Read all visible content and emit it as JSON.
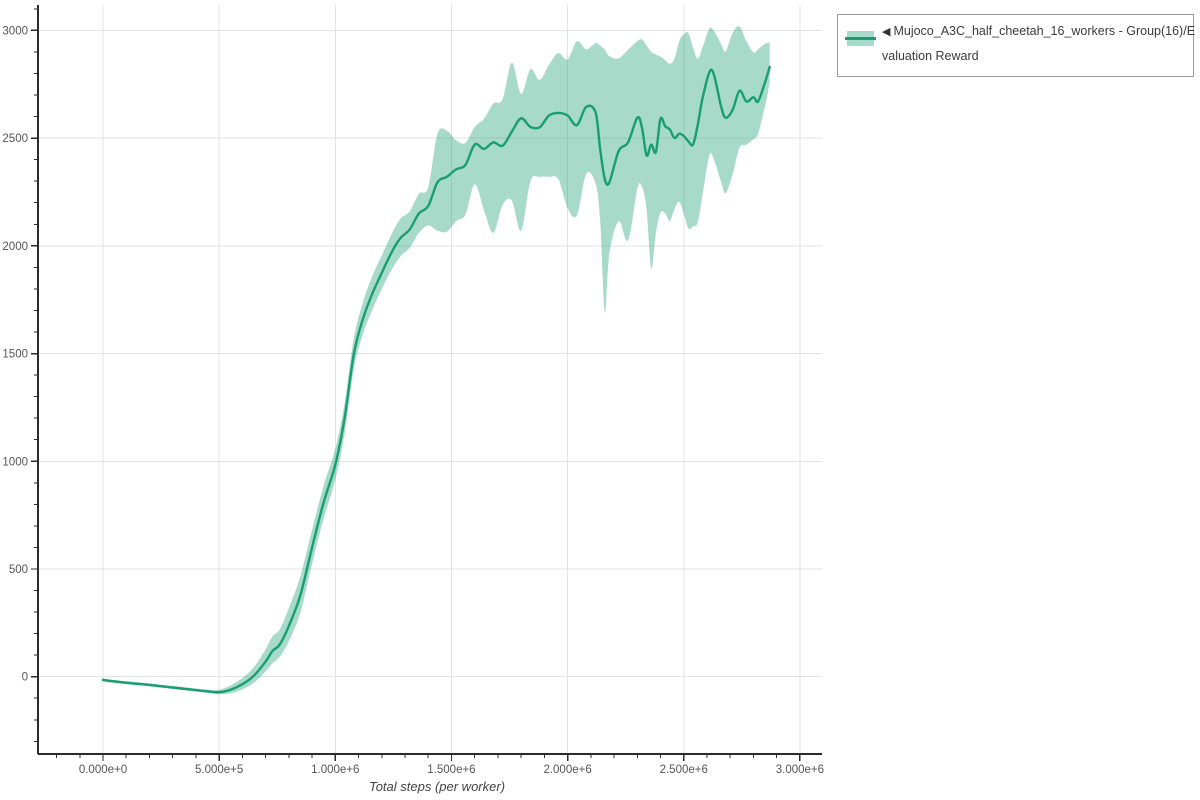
{
  "chart_data": {
    "type": "line",
    "title": "",
    "xlabel": "Total steps (per worker)",
    "ylabel": "",
    "grid": true,
    "legend_position": "outside-top-right",
    "xlim_steps": [
      -280000,
      3095000
    ],
    "ylim": [
      -360,
      3120
    ],
    "x_ticks": {
      "values_millions": [
        0,
        0.5,
        1,
        1.5,
        2,
        2.5,
        3
      ],
      "labels": [
        "0.000e+0",
        "5.000e+5",
        "1.000e+6",
        "1.500e+6",
        "2.000e+6",
        "2.500e+6",
        "3.000e+6"
      ],
      "minor_step_millions": 0.1,
      "minor_from_millions": -0.2,
      "minor_to_millions": 3.0
    },
    "y_ticks": {
      "values": [
        0,
        500,
        1000,
        1500,
        2000,
        2500,
        3000
      ],
      "labels": [
        "0",
        "500",
        "1000",
        "1500",
        "2000",
        "2500",
        "3000"
      ],
      "minor_step": 100,
      "minor_from": -300,
      "minor_to": 3100
    },
    "series": [
      {
        "name": "Mujoco_A3C_half_cheetah_16_workers - Group(16)/Evaluation Reward",
        "color": "#189e72",
        "band_fill_opacity": 0.38,
        "points_format": [
          "step_millions",
          "band_low",
          "mean",
          "band_high"
        ],
        "points": [
          [
            0.0,
            -22,
            -15,
            -8
          ],
          [
            0.05,
            -29,
            -22,
            -15
          ],
          [
            0.1,
            -35,
            -28,
            -21
          ],
          [
            0.15,
            -40,
            -33,
            -26
          ],
          [
            0.2,
            -45,
            -38,
            -31
          ],
          [
            0.25,
            -51,
            -44,
            -37
          ],
          [
            0.3,
            -57,
            -50,
            -43
          ],
          [
            0.35,
            -63,
            -56,
            -49
          ],
          [
            0.4,
            -69,
            -62,
            -55
          ],
          [
            0.45,
            -75,
            -68,
            -60
          ],
          [
            0.5,
            -81,
            -72,
            -61
          ],
          [
            0.55,
            -77,
            -60,
            -40
          ],
          [
            0.6,
            -58,
            -35,
            -6
          ],
          [
            0.65,
            -28,
            5,
            45
          ],
          [
            0.7,
            25,
            70,
            128
          ],
          [
            0.73,
            62,
            120,
            188
          ],
          [
            0.76,
            92,
            148,
            218
          ],
          [
            0.8,
            165,
            235,
            318
          ],
          [
            0.85,
            300,
            380,
            468
          ],
          [
            0.9,
            525,
            600,
            682
          ],
          [
            0.95,
            735,
            810,
            888
          ],
          [
            1.0,
            915,
            985,
            1058
          ],
          [
            1.04,
            1130,
            1200,
            1272
          ],
          [
            1.08,
            1430,
            1500,
            1572
          ],
          [
            1.12,
            1595,
            1665,
            1742
          ],
          [
            1.16,
            1705,
            1780,
            1862
          ],
          [
            1.2,
            1800,
            1875,
            1955
          ],
          [
            1.24,
            1885,
            1965,
            2050
          ],
          [
            1.28,
            1950,
            2035,
            2125
          ],
          [
            1.32,
            1990,
            2075,
            2160
          ],
          [
            1.36,
            2060,
            2150,
            2242
          ],
          [
            1.4,
            2095,
            2185,
            2272
          ],
          [
            1.44,
            2070,
            2295,
            2520
          ],
          [
            1.48,
            2065,
            2320,
            2535
          ],
          [
            1.52,
            2115,
            2355,
            2490
          ],
          [
            1.56,
            2145,
            2375,
            2478
          ],
          [
            1.6,
            2285,
            2470,
            2552
          ],
          [
            1.64,
            2165,
            2450,
            2590
          ],
          [
            1.68,
            2060,
            2480,
            2660
          ],
          [
            1.72,
            2190,
            2465,
            2680
          ],
          [
            1.76,
            2210,
            2530,
            2850
          ],
          [
            1.8,
            2070,
            2592,
            2705
          ],
          [
            1.84,
            2300,
            2552,
            2820
          ],
          [
            1.88,
            2320,
            2550,
            2770
          ],
          [
            1.92,
            2320,
            2605,
            2840
          ],
          [
            1.96,
            2310,
            2617,
            2895
          ],
          [
            2.0,
            2175,
            2605,
            2865
          ],
          [
            2.04,
            2142,
            2560,
            2950
          ],
          [
            2.08,
            2335,
            2645,
            2912
          ],
          [
            2.12,
            2290,
            2620,
            2940
          ],
          [
            2.14,
            2120,
            2450,
            2930
          ],
          [
            2.16,
            1690,
            2310,
            2910
          ],
          [
            2.18,
            1965,
            2295,
            2880
          ],
          [
            2.22,
            2115,
            2440,
            2870
          ],
          [
            2.26,
            2025,
            2480,
            2910
          ],
          [
            2.3,
            2265,
            2595,
            2950
          ],
          [
            2.32,
            2275,
            2550,
            2958
          ],
          [
            2.34,
            2170,
            2420,
            2930
          ],
          [
            2.36,
            1895,
            2470,
            2900
          ],
          [
            2.38,
            2060,
            2435,
            2888
          ],
          [
            2.4,
            2155,
            2590,
            2878
          ],
          [
            2.42,
            2150,
            2555,
            2862
          ],
          [
            2.44,
            2115,
            2540,
            2845
          ],
          [
            2.46,
            2170,
            2500,
            2868
          ],
          [
            2.48,
            2205,
            2520,
            2948
          ],
          [
            2.5,
            2150,
            2510,
            2982
          ],
          [
            2.52,
            2080,
            2485,
            2988
          ],
          [
            2.54,
            2090,
            2470,
            2920
          ],
          [
            2.56,
            2108,
            2560,
            2868
          ],
          [
            2.58,
            2230,
            2680,
            2918
          ],
          [
            2.61,
            2420,
            2805,
            3008
          ],
          [
            2.63,
            2400,
            2795,
            2998
          ],
          [
            2.66,
            2300,
            2650,
            2938
          ],
          [
            2.68,
            2245,
            2595,
            2902
          ],
          [
            2.71,
            2330,
            2630,
            2988
          ],
          [
            2.74,
            2455,
            2720,
            3018
          ],
          [
            2.77,
            2470,
            2670,
            2948
          ],
          [
            2.8,
            2495,
            2690,
            2898
          ],
          [
            2.82,
            2520,
            2670,
            2912
          ],
          [
            2.85,
            2650,
            2760,
            2938
          ],
          [
            2.87,
            2755,
            2830,
            2945
          ]
        ]
      }
    ]
  },
  "legend": {
    "collapse_icon": "◀",
    "lines": [
      "Mujoco_A3C_half_cheetah_16_workers - Group(16)/E",
      "valuation Reward"
    ]
  },
  "colors": {
    "line": "#189e72",
    "band": "#a7dac9",
    "grid": "#e3e3e3",
    "axis": "#2b2b2b",
    "tick_label": "#555555",
    "axis_title": "#444444",
    "legend_border": "#9c9c9c",
    "legend_text": "#3b3b3b",
    "background": "#ffffff"
  }
}
